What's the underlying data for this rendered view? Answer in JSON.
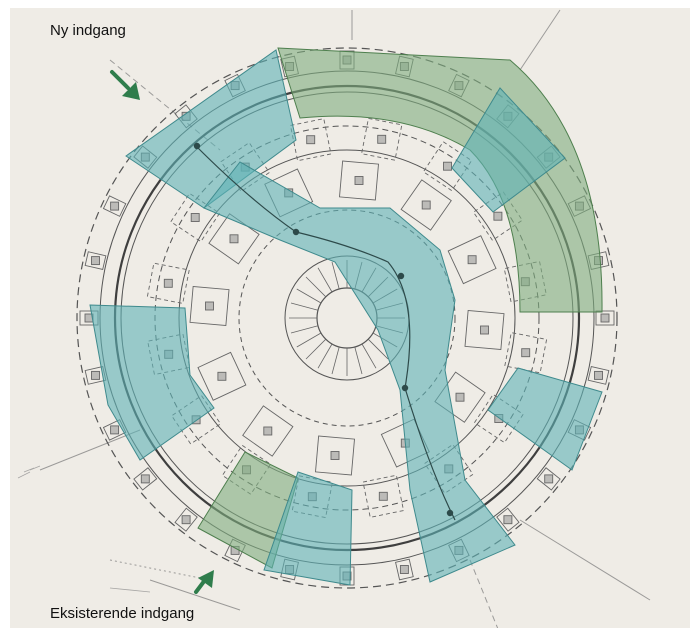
{
  "annotations": {
    "new_entrance": "Ny indgang",
    "existing_entrance": "Eksisterende indgang"
  },
  "colors": {
    "paper": "#ece9e2",
    "ink": "#4a4a4a",
    "teal_zone": "#5eb3b6",
    "green_zone": "#7fae7f",
    "arrow": "#2f7d4c"
  },
  "icons": {
    "new_entrance_arrow": "arrow-down-right-icon",
    "existing_entrance_arrow": "arrow-up-right-icon"
  }
}
